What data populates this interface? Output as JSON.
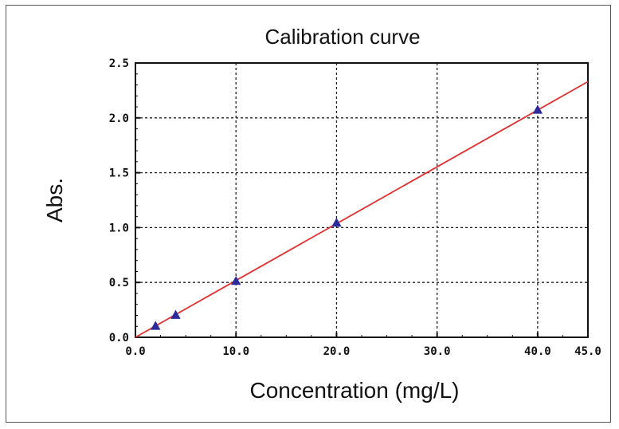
{
  "chart_data": {
    "type": "scatter",
    "title": "Calibration curve",
    "xlabel": "Concentration (mg/L)",
    "ylabel": "Abs.",
    "xlim": [
      0,
      45
    ],
    "ylim": [
      0,
      2.5
    ],
    "x_tick_labels": [
      "0.0",
      "10.0",
      "20.0",
      "30.0",
      "40.0",
      "45.0"
    ],
    "y_tick_labels": [
      "0.0",
      "0.5",
      "1.0",
      "1.5",
      "2.0",
      "2.5"
    ],
    "grid": true,
    "series": [
      {
        "type": "scatter",
        "marker": "triangle",
        "color": "#2b2b9a",
        "points": [
          {
            "x": 2,
            "y": 0.1
          },
          {
            "x": 4,
            "y": 0.2
          },
          {
            "x": 10,
            "y": 0.51
          },
          {
            "x": 20,
            "y": 1.04
          },
          {
            "x": 40,
            "y": 2.07
          }
        ]
      },
      {
        "type": "line",
        "color": "#e03030",
        "points": [
          {
            "x": 0,
            "y": 0
          },
          {
            "x": 45,
            "y": 2.33
          }
        ]
      }
    ]
  }
}
